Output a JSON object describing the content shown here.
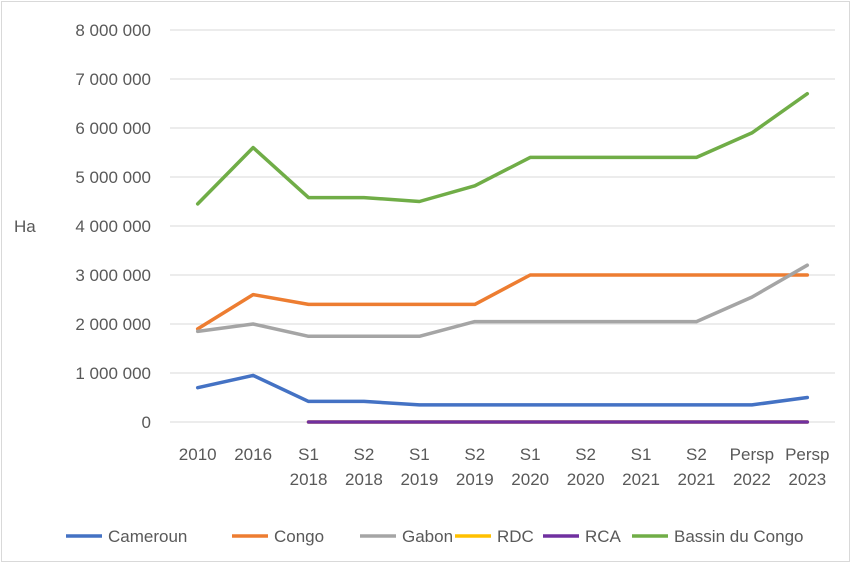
{
  "chart_data": {
    "type": "line",
    "title": "",
    "xlabel": "",
    "ylabel": "Ha",
    "ylim": [
      0,
      8000000
    ],
    "yticks": [
      "8 000 000",
      "7 000 000",
      "6 000 000",
      "5 000 000",
      "4 000 000",
      "3 000 000",
      "2 000 000",
      "1 000 000",
      "0"
    ],
    "categories": [
      [
        "2010"
      ],
      [
        "2016"
      ],
      [
        "S1",
        "2018"
      ],
      [
        "S2",
        "2018"
      ],
      [
        "S1",
        "2019"
      ],
      [
        "S2",
        "2019"
      ],
      [
        "S1",
        "2020"
      ],
      [
        "S2",
        "2020"
      ],
      [
        "S1",
        "2021"
      ],
      [
        "S2",
        "2021"
      ],
      [
        "Persp",
        "2022"
      ],
      [
        "Persp",
        "2023"
      ]
    ],
    "grid": true,
    "legend_position": "bottom",
    "series": [
      {
        "name": "Cameroun",
        "color": "#4472c4",
        "values": [
          700000,
          950000,
          420000,
          420000,
          350000,
          350000,
          350000,
          350000,
          350000,
          350000,
          350000,
          500000
        ]
      },
      {
        "name": "Congo",
        "color": "#ed7d31",
        "values": [
          1900000,
          2600000,
          2400000,
          2400000,
          2400000,
          2400000,
          3000000,
          3000000,
          3000000,
          3000000,
          3000000,
          3000000
        ]
      },
      {
        "name": "Gabon",
        "color": "#a5a5a5",
        "values": [
          1850000,
          2000000,
          1750000,
          1750000,
          1750000,
          2050000,
          2050000,
          2050000,
          2050000,
          2050000,
          2550000,
          3200000
        ]
      },
      {
        "name": "RDC",
        "color": "#ffc000",
        "values": [
          null,
          null,
          0,
          0,
          0,
          0,
          0,
          0,
          0,
          0,
          0,
          0
        ]
      },
      {
        "name": "RCA",
        "color": "#7030a0",
        "values": [
          null,
          null,
          0,
          0,
          0,
          0,
          0,
          0,
          0,
          0,
          0,
          0
        ]
      },
      {
        "name": "Bassin du Congo",
        "color": "#70ad47",
        "values": [
          4450000,
          5600000,
          4580000,
          4580000,
          4500000,
          4820000,
          5400000,
          5400000,
          5400000,
          5400000,
          5900000,
          6700000
        ]
      }
    ]
  }
}
